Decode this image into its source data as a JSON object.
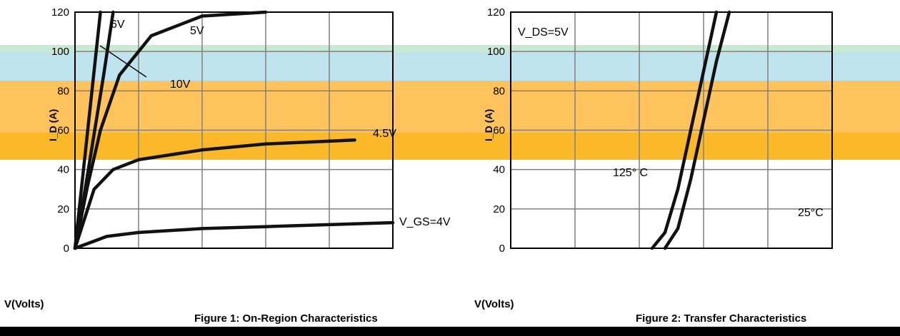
{
  "figures": [
    {
      "title": "Figure 1: On-Region Characteristics",
      "xlabel": "V(Volts)",
      "ylabel": "I_D (A)"
    },
    {
      "title": "Figure 2: Transfer Characteristics",
      "xlabel": "V(Volts)",
      "ylabel": "I_D (A)"
    }
  ],
  "chart_data": [
    {
      "type": "line",
      "title": "Figure 1: On-Region Characteristics",
      "xlabel": "V(Volts)",
      "ylabel": "I_D (A)",
      "xlim": [
        0,
        5
      ],
      "ylim": [
        0,
        120
      ],
      "yticks": [
        0,
        20,
        40,
        60,
        80,
        100,
        120
      ],
      "series": [
        {
          "name": "10V",
          "x": [
            0,
            0.1,
            0.2,
            0.3,
            0.4
          ],
          "y": [
            0,
            30,
            60,
            90,
            120
          ]
        },
        {
          "name": "6V",
          "x": [
            0,
            0.15,
            0.3,
            0.45,
            0.6
          ],
          "y": [
            0,
            28,
            58,
            88,
            120
          ]
        },
        {
          "name": "5V",
          "x": [
            0,
            0.2,
            0.4,
            0.7,
            1.2,
            2,
            3
          ],
          "y": [
            0,
            32,
            60,
            88,
            108,
            118,
            120
          ]
        },
        {
          "name": "4.5V",
          "x": [
            0,
            0.3,
            0.6,
            1,
            2,
            3,
            4.4
          ],
          "y": [
            0,
            30,
            40,
            45,
            50,
            53,
            55
          ]
        },
        {
          "name": "V_GS=4V",
          "x": [
            0,
            0.5,
            1,
            2,
            3,
            4,
            5
          ],
          "y": [
            0,
            6,
            8,
            10,
            11,
            12,
            13
          ]
        }
      ]
    },
    {
      "type": "line",
      "title": "Figure 2: Transfer Characteristics",
      "xlabel": "V(Volts)",
      "ylabel": "I_D (A)",
      "xlim": [
        1,
        6
      ],
      "ylim": [
        0,
        120
      ],
      "yticks": [
        0,
        20,
        40,
        60,
        80,
        100,
        120
      ],
      "annotation": "V_DS=5V",
      "series": [
        {
          "name": "125° C",
          "x": [
            3.2,
            3.4,
            3.6,
            3.8,
            4.0,
            4.2
          ],
          "y": [
            0,
            8,
            30,
            60,
            90,
            120
          ]
        },
        {
          "name": "25°C",
          "x": [
            3.4,
            3.6,
            3.8,
            4.0,
            4.2,
            4.4
          ],
          "y": [
            0,
            10,
            35,
            65,
            95,
            120
          ]
        }
      ]
    }
  ]
}
